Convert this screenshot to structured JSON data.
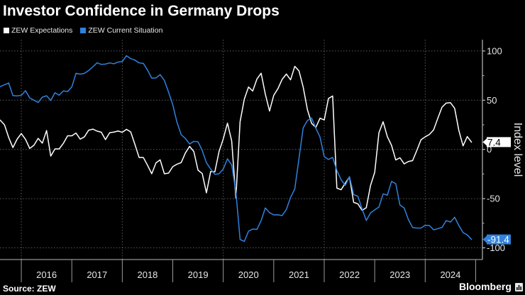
{
  "footer": {
    "source": "Source: ZEW",
    "brand": "Bloomberg",
    "brand_icon": "bloomberg-terminal-icon"
  },
  "chart_data": {
    "type": "line",
    "title": "Investor Confidence in Germany Drops",
    "xlabel": "",
    "ylabel": "Index level",
    "ylim": [
      -112,
      112
    ],
    "xlim": [
      "2015-07",
      "2025-01"
    ],
    "y_ticks": [
      100,
      50,
      0,
      -50,
      -100
    ],
    "y_minor_ticks": [
      75,
      25,
      -25,
      -75
    ],
    "y_axis_side": "right",
    "x_tick_labels": [
      "2016",
      "2017",
      "2018",
      "2019",
      "2020",
      "2021",
      "2022",
      "2023",
      "2024"
    ],
    "grid": true,
    "legend": {
      "position": "top-left",
      "entries": [
        {
          "label": "ZEW Expectations",
          "color": "#ffffff"
        },
        {
          "label": "ZEW Current Situation",
          "color": "#2f82de"
        }
      ]
    },
    "x": [
      "2015-07",
      "2015-08",
      "2015-09",
      "2015-10",
      "2015-11",
      "2015-12",
      "2016-01",
      "2016-02",
      "2016-03",
      "2016-04",
      "2016-05",
      "2016-06",
      "2016-07",
      "2016-08",
      "2016-09",
      "2016-10",
      "2016-11",
      "2016-12",
      "2017-01",
      "2017-02",
      "2017-03",
      "2017-04",
      "2017-05",
      "2017-06",
      "2017-07",
      "2017-08",
      "2017-09",
      "2017-10",
      "2017-11",
      "2017-12",
      "2018-01",
      "2018-02",
      "2018-03",
      "2018-04",
      "2018-05",
      "2018-06",
      "2018-07",
      "2018-08",
      "2018-09",
      "2018-10",
      "2018-11",
      "2018-12",
      "2019-01",
      "2019-02",
      "2019-03",
      "2019-04",
      "2019-05",
      "2019-06",
      "2019-07",
      "2019-08",
      "2019-09",
      "2019-10",
      "2019-11",
      "2019-12",
      "2020-01",
      "2020-02",
      "2020-03",
      "2020-04",
      "2020-05",
      "2020-06",
      "2020-07",
      "2020-08",
      "2020-09",
      "2020-10",
      "2020-11",
      "2020-12",
      "2021-01",
      "2021-02",
      "2021-03",
      "2021-04",
      "2021-05",
      "2021-06",
      "2021-07",
      "2021-08",
      "2021-09",
      "2021-10",
      "2021-11",
      "2021-12",
      "2022-01",
      "2022-02",
      "2022-03",
      "2022-04",
      "2022-05",
      "2022-06",
      "2022-07",
      "2022-08",
      "2022-09",
      "2022-10",
      "2022-11",
      "2022-12",
      "2023-01",
      "2023-02",
      "2023-03",
      "2023-04",
      "2023-05",
      "2023-06",
      "2023-07",
      "2023-08",
      "2023-09",
      "2023-10",
      "2023-11",
      "2023-12",
      "2024-01",
      "2024-02",
      "2024-03",
      "2024-04",
      "2024-05",
      "2024-06",
      "2024-07",
      "2024-08",
      "2024-09",
      "2024-10",
      "2024-11"
    ],
    "series": [
      {
        "name": "ZEW Expectations",
        "color": "#ffffff",
        "values": [
          29.7,
          25.0,
          12.1,
          1.9,
          10.4,
          16.1,
          10.2,
          1.0,
          4.3,
          11.2,
          6.4,
          19.2,
          -6.8,
          0.5,
          0.5,
          6.2,
          13.8,
          13.8,
          16.6,
          10.4,
          12.8,
          19.5,
          20.6,
          18.6,
          17.5,
          10.0,
          17.0,
          17.6,
          18.7,
          17.4,
          20.4,
          17.8,
          5.1,
          -8.2,
          -8.2,
          -16.1,
          -24.7,
          -13.7,
          -10.6,
          -24.7,
          -24.1,
          -17.5,
          -15.0,
          -13.4,
          -3.6,
          3.1,
          -2.1,
          -21.1,
          -24.5,
          -44.1,
          -22.5,
          -22.8,
          -2.1,
          10.7,
          26.7,
          8.7,
          -49.5,
          28.2,
          51.0,
          63.4,
          59.3,
          71.5,
          77.4,
          56.1,
          39.0,
          55.0,
          61.8,
          71.2,
          76.6,
          70.7,
          84.4,
          79.8,
          63.3,
          40.4,
          26.5,
          22.3,
          31.7,
          29.9,
          51.7,
          54.3,
          -39.3,
          -41.0,
          -34.3,
          -28.0,
          -53.8,
          -55.3,
          -61.9,
          -59.2,
          -36.7,
          -23.3,
          16.9,
          28.1,
          13.0,
          4.1,
          -10.7,
          -8.5,
          -14.7,
          -12.3,
          -11.4,
          -1.1,
          9.8,
          12.8,
          15.2,
          19.9,
          31.7,
          42.9,
          47.1,
          47.5,
          41.8,
          19.2,
          3.6,
          13.1,
          7.4
        ]
      },
      {
        "name": "ZEW Current Situation",
        "color": "#2f82de",
        "values": [
          63.9,
          65.7,
          67.5,
          54.7,
          54.4,
          55.0,
          59.7,
          52.3,
          50.0,
          47.7,
          53.1,
          54.5,
          49.8,
          57.6,
          55.1,
          59.5,
          58.8,
          63.5,
          77.3,
          76.4,
          77.3,
          80.1,
          83.9,
          88.0,
          86.4,
          86.7,
          87.9,
          87.0,
          88.8,
          89.3,
          95.2,
          92.3,
          90.7,
          87.9,
          87.4,
          80.6,
          72.4,
          72.6,
          76.0,
          70.1,
          58.2,
          45.3,
          27.6,
          15.0,
          11.1,
          5.5,
          8.2,
          7.8,
          -1.1,
          -13.5,
          -19.9,
          -25.3,
          -24.7,
          -19.9,
          -9.5,
          -15.7,
          -43.1,
          -91.5,
          -93.5,
          -83.1,
          -80.9,
          -81.3,
          -72.3,
          -59.5,
          -64.3,
          -66.5,
          -66.4,
          -67.2,
          -61.0,
          -48.8,
          -40.1,
          -9.1,
          21.9,
          29.3,
          31.9,
          21.6,
          12.5,
          -7.4,
          -10.2,
          -8.1,
          -21.4,
          -30.8,
          -36.5,
          -27.6,
          -45.8,
          -47.6,
          -60.5,
          -72.2,
          -64.5,
          -61.4,
          -58.6,
          -45.1,
          -46.5,
          -32.5,
          -34.8,
          -56.5,
          -59.5,
          -71.3,
          -79.4,
          -79.9,
          -79.8,
          -77.1,
          -77.3,
          -81.7,
          -80.5,
          -79.2,
          -72.3,
          -73.8,
          -68.9,
          -77.3,
          -84.5,
          -86.9,
          -91.4
        ]
      }
    ],
    "annotations": [
      {
        "series": "ZEW Expectations",
        "value": 7.4,
        "label": "7.4",
        "box_color": "#ffffff",
        "text_color": "#000000"
      },
      {
        "series": "ZEW Current Situation",
        "value": -91.4,
        "label": "-91.4",
        "box_color": "#2f82de",
        "text_color": "#ffffff"
      }
    ]
  }
}
